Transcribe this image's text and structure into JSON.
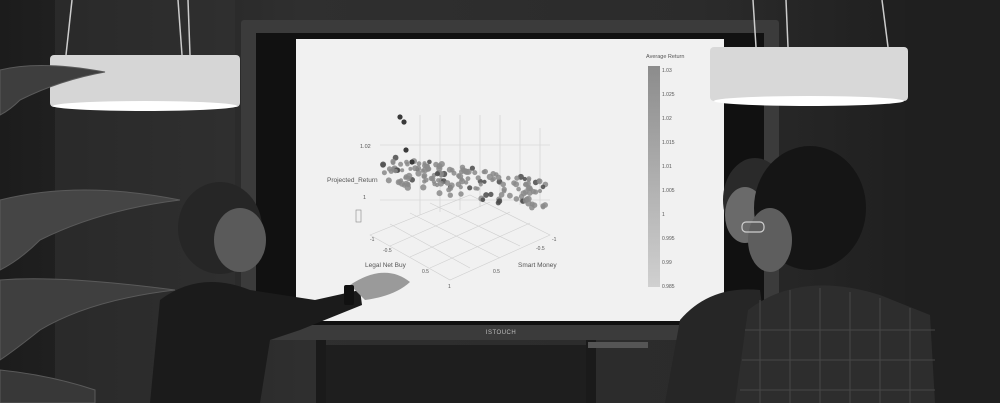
{
  "screen": {
    "brand": "ISTOUCH",
    "plot": {
      "colorbar_title": "Average Return",
      "colorbar_ticks": [
        "1.03",
        "1.025",
        "1.02",
        "1.015",
        "1.01",
        "1.005",
        "1",
        "0.995",
        "0.99",
        "0.985"
      ],
      "z_axis_label": "Projected_Return",
      "z_tick": "1.02",
      "z_tick_low": "1",
      "x_axis_label": "Legal Net Buy",
      "y_axis_label": "Smart Money",
      "x_ticks": [
        "-1",
        "-0.5",
        "0.5",
        "1"
      ],
      "y_ticks": [
        "-0.5",
        "0.5",
        "-1"
      ]
    }
  },
  "colors": {
    "background": "#2a2a2a",
    "screen_bg": "#f0f0f0",
    "monitor_bezel": "#3a3a3a",
    "lamp_shade": "#d9d9d9",
    "lamp_glow": "#f5f5f5",
    "points": "#8a8a8a"
  },
  "icons": {
    "lamp_left": "pendant-lamp-icon",
    "lamp_right": "pendant-lamp-icon",
    "plant": "plant-icon",
    "person": "person-icon"
  }
}
